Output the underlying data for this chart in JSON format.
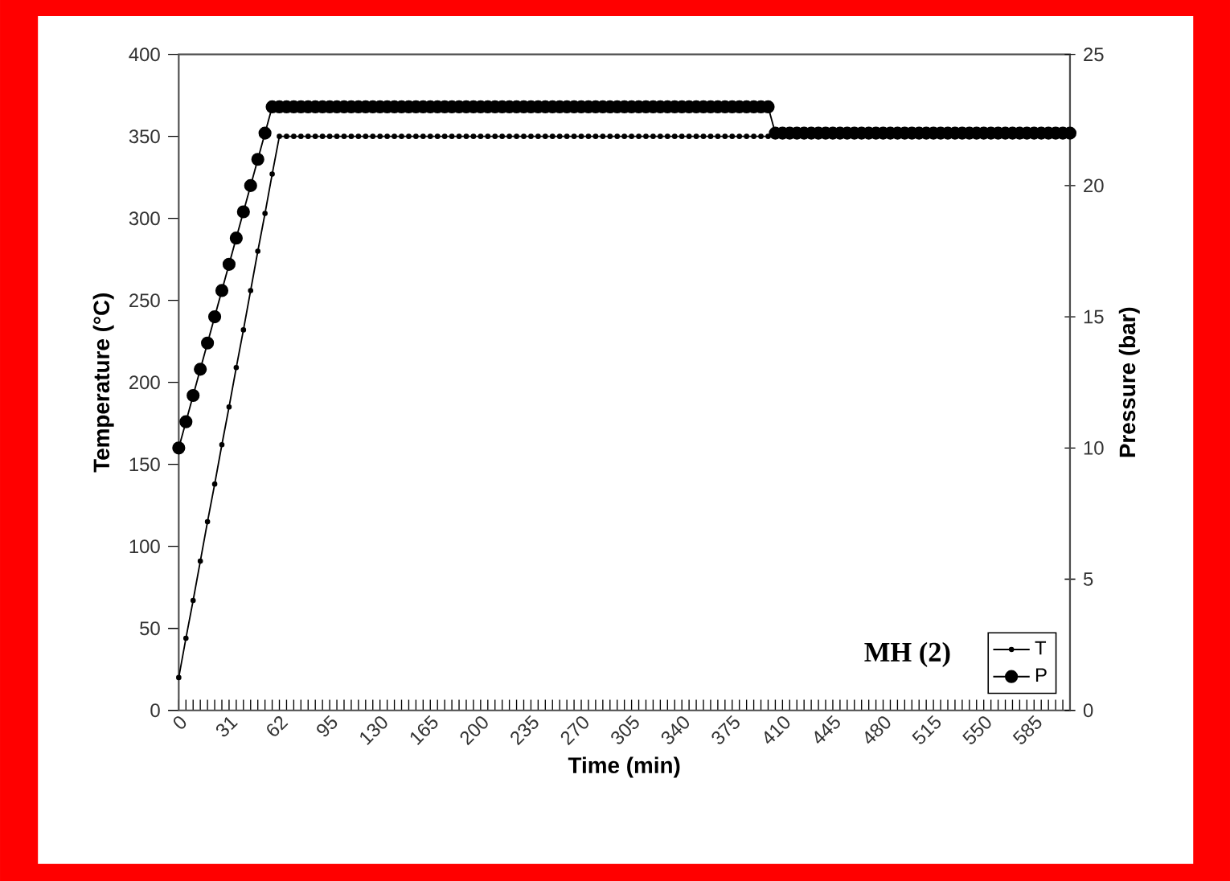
{
  "chart_data": {
    "type": "line",
    "xlabel": "Time (min)",
    "ylabel": "Temperature (°C)",
    "y2label": "Pressure (bar)",
    "annotations": [
      "MH (2)"
    ],
    "categories": [
      "0",
      null,
      null,
      null,
      null,
      null,
      null,
      "31",
      null,
      null,
      null,
      null,
      null,
      null,
      "62",
      null,
      null,
      null,
      null,
      null,
      null,
      "95",
      null,
      null,
      null,
      null,
      null,
      null,
      "130",
      null,
      null,
      null,
      null,
      null,
      null,
      "165",
      null,
      null,
      null,
      null,
      null,
      null,
      "200",
      null,
      null,
      null,
      null,
      null,
      null,
      "235",
      null,
      null,
      null,
      null,
      null,
      null,
      "270",
      null,
      null,
      null,
      null,
      null,
      null,
      "305",
      null,
      null,
      null,
      null,
      null,
      null,
      "340",
      null,
      null,
      null,
      null,
      null,
      null,
      "375",
      null,
      null,
      null,
      null,
      null,
      null,
      "410",
      null,
      null,
      null,
      null,
      null,
      null,
      "445",
      null,
      null,
      null,
      null,
      null,
      null,
      "480",
      null,
      null,
      null,
      null,
      null,
      null,
      "515",
      null,
      null,
      null,
      null,
      null,
      null,
      "550",
      null,
      null,
      null,
      null,
      null,
      null,
      "585",
      null,
      null,
      null,
      null,
      null
    ],
    "series": [
      {
        "name": "T",
        "color": "#000000",
        "axis": "y",
        "values": [
          20,
          44,
          67,
          91,
          115,
          138,
          162,
          185,
          209,
          232,
          256,
          280,
          303,
          327,
          350,
          350,
          350,
          350,
          350,
          350,
          350,
          350,
          350,
          350,
          350,
          350,
          350,
          350,
          350,
          350,
          350,
          350,
          350,
          350,
          350,
          350,
          350,
          350,
          350,
          350,
          350,
          350,
          350,
          350,
          350,
          350,
          350,
          350,
          350,
          350,
          350,
          350,
          350,
          350,
          350,
          350,
          350,
          350,
          350,
          350,
          350,
          350,
          350,
          350,
          350,
          350,
          350,
          350,
          350,
          350,
          350,
          350,
          350,
          350,
          350,
          350,
          350,
          350,
          350,
          350,
          350,
          350,
          350,
          350,
          350,
          350,
          350,
          350,
          350,
          350,
          350,
          350,
          350,
          350,
          350,
          350,
          350,
          350,
          350,
          350,
          350,
          350,
          350,
          350,
          350,
          350,
          350,
          350,
          350,
          350,
          350,
          350,
          350,
          350,
          350,
          350,
          350,
          350,
          350,
          350,
          350,
          350,
          350,
          350,
          350
        ]
      },
      {
        "name": "P",
        "color": "#000000",
        "axis": "y2",
        "values": [
          10,
          11,
          12,
          13,
          14,
          15,
          16,
          17,
          18,
          19,
          20,
          21,
          22,
          23,
          23,
          23,
          23,
          23,
          23,
          23,
          23,
          23,
          23,
          23,
          23,
          23,
          23,
          23,
          23,
          23,
          23,
          23,
          23,
          23,
          23,
          23,
          23,
          23,
          23,
          23,
          23,
          23,
          23,
          23,
          23,
          23,
          23,
          23,
          23,
          23,
          23,
          23,
          23,
          23,
          23,
          23,
          23,
          23,
          23,
          23,
          23,
          23,
          23,
          23,
          23,
          23,
          23,
          23,
          23,
          23,
          23,
          23,
          23,
          23,
          23,
          23,
          23,
          23,
          23,
          23,
          23,
          23,
          23,
          22,
          22,
          22,
          22,
          22,
          22,
          22,
          22,
          22,
          22,
          22,
          22,
          22,
          22,
          22,
          22,
          22,
          22,
          22,
          22,
          22,
          22,
          22,
          22,
          22,
          22,
          22,
          22,
          22,
          22,
          22,
          22,
          22,
          22,
          22,
          22,
          22,
          22,
          22,
          22,
          22,
          22
        ]
      }
    ],
    "ylim": [
      0,
      400
    ],
    "yticks": [
      0,
      50,
      100,
      150,
      200,
      250,
      300,
      350,
      400
    ],
    "y2lim": [
      0,
      25
    ],
    "y2ticks": [
      0,
      5,
      10,
      15,
      20,
      25
    ],
    "grid": false,
    "legend": "bottom right",
    "marker": "circle"
  }
}
